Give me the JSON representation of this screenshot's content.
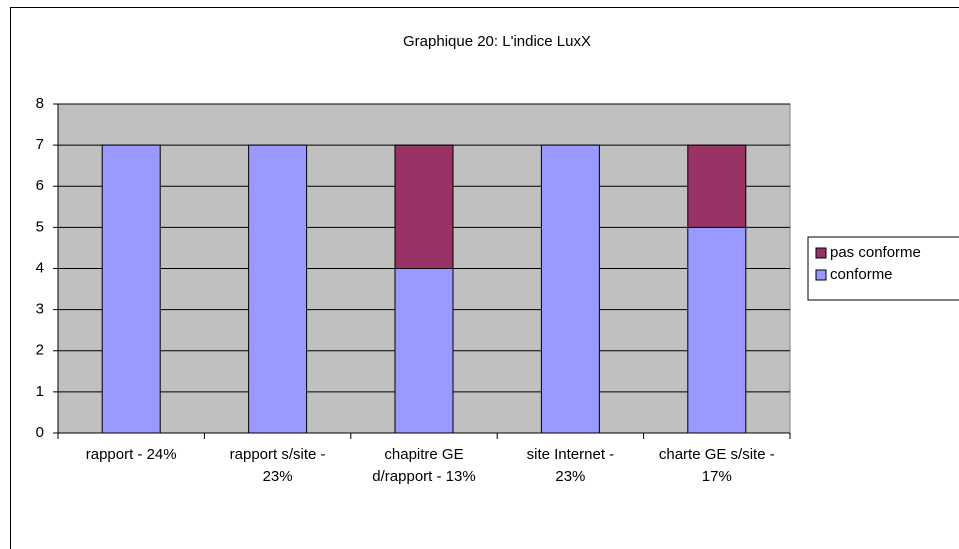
{
  "chart_data": {
    "type": "stacked_bar",
    "title": "Graphique 20: L'indice LuxX",
    "categories": [
      "rapport - 24%",
      "rapport s/site - 23%",
      "chapitre GE d/rapport - 13%",
      "site Internet - 23%",
      "charte GE s/site - 17%"
    ],
    "series": [
      {
        "name": "conforme",
        "color": "#9999ff",
        "values": [
          7,
          7,
          4,
          7,
          5
        ]
      },
      {
        "name": "pas conforme",
        "color": "#993366",
        "values": [
          0,
          0,
          3,
          0,
          2
        ]
      }
    ],
    "ylim": [
      0,
      8
    ],
    "yticks": [
      0,
      1,
      2,
      3,
      4,
      5,
      6,
      7,
      8
    ],
    "grid": true,
    "plot_background": "#c0c0c0",
    "legend": "right"
  }
}
